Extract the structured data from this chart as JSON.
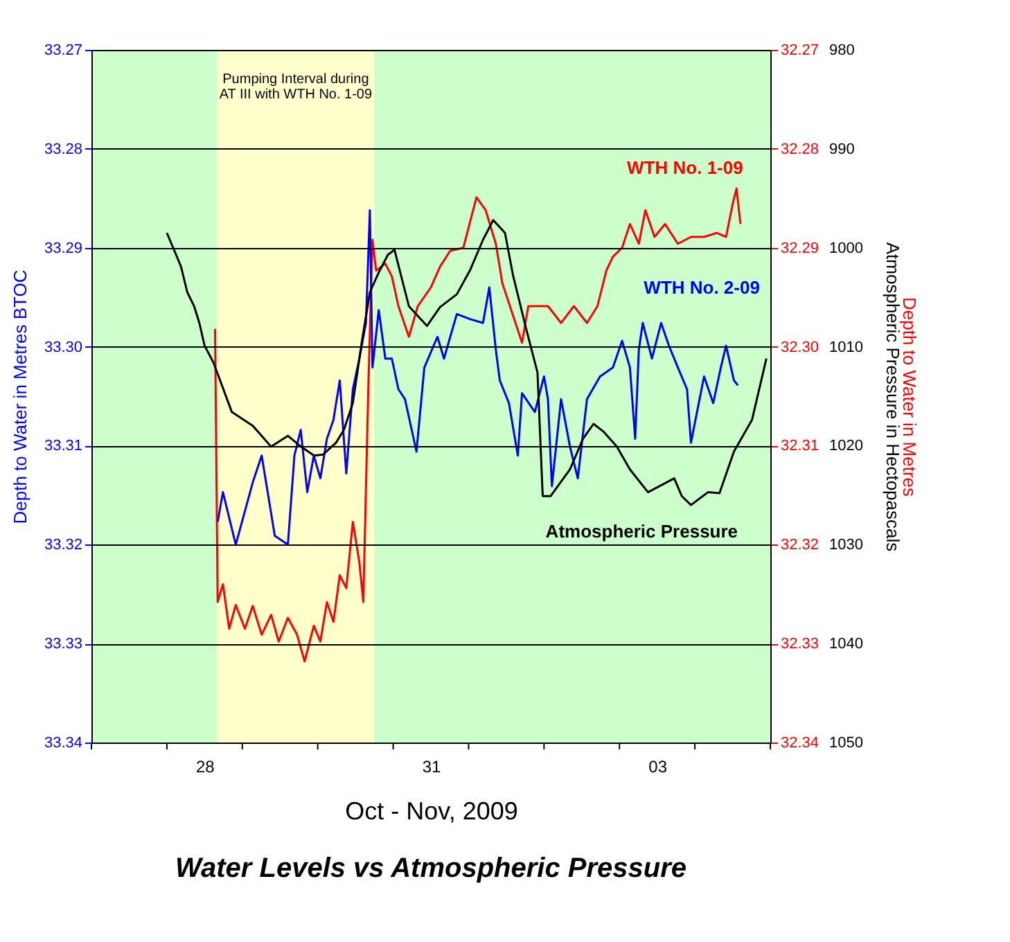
{
  "chart_data": {
    "type": "line",
    "title": "Water Levels vs Atmospheric Pressure",
    "xlabel": "Oct - Nov, 2009",
    "ylabel": "Depth to Water in Metres BTOC",
    "y2label": "Depth to Water in Metres",
    "y3label": "Atmospheric Pressure in Hectopascals",
    "xlim": [
      "2009-10-27",
      "2009-11-05"
    ],
    "xticks": [
      {
        "value": "2009-10-27",
        "label": null
      },
      {
        "value": "2009-10-28",
        "label": null
      },
      {
        "value": "2009-10-28T12:00",
        "label": "28"
      },
      {
        "value": "2009-10-29",
        "label": null
      },
      {
        "value": "2009-10-30",
        "label": null
      },
      {
        "value": "2009-10-31",
        "label": null
      },
      {
        "value": "2009-10-31T12:00",
        "label": "31"
      },
      {
        "value": "2009-11-01",
        "label": null
      },
      {
        "value": "2009-11-02",
        "label": null
      },
      {
        "value": "2009-11-03",
        "label": null
      },
      {
        "value": "2009-11-03T12:00",
        "label": "03"
      },
      {
        "value": "2009-11-04",
        "label": null
      },
      {
        "value": "2009-11-05",
        "label": null
      }
    ],
    "ylim": [
      33.34,
      33.27
    ],
    "yticks": [
      33.27,
      33.28,
      33.29,
      {
        "value": 33.3,
        "label": "33.30"
      },
      33.31,
      33.32,
      33.33,
      33.34
    ],
    "y2lim": [
      32.34,
      32.27
    ],
    "y2ticks": [
      32.27,
      32.28,
      32.29,
      {
        "value": 32.3,
        "label": "32.30"
      },
      32.31,
      32.32,
      32.33,
      32.34
    ],
    "y3lim": [
      1050,
      980
    ],
    "y3ticks": [
      980,
      990,
      1000,
      1010,
      1020,
      1030,
      1040,
      1050
    ],
    "grid": "y",
    "bands": [
      {
        "axis": "x",
        "from": "2009-10-27",
        "to": "2009-11-05",
        "label": null,
        "color": "#ccffcc"
      },
      {
        "axis": "x",
        "from": "2009-10-28T16:00",
        "to": "2009-10-30T18:00",
        "label": "Pumping Interval during AT III with WTH No. 1-09",
        "color": "#ffffcc"
      }
    ],
    "series": [
      {
        "name": "WTH No. 1-09",
        "color": "#ff0000",
        "axis": "y2",
        "x": [
          "2009-10-28T15:20",
          "2009-10-28T16:10",
          "2009-10-28T17:50",
          "2009-10-28T19:50",
          "2009-10-28T21:55",
          "2009-10-29T00:50",
          "2009-10-29T03:20",
          "2009-10-29T06:10",
          "2009-10-29T09:10",
          "2009-10-29T11:35",
          "2009-10-29T14:30",
          "2009-10-29T17:25",
          "2009-10-29T19:50",
          "2009-10-29T22:45",
          "2009-10-30T00:50",
          "2009-10-30T02:55",
          "2009-10-30T05:00",
          "2009-10-30T07:00",
          "2009-10-30T09:05",
          "2009-10-30T11:10",
          "2009-10-30T13:15",
          "2009-10-30T14:30",
          "2009-10-30T16:05",
          "2009-10-30T17:25",
          "2009-10-30T18:35",
          "2009-10-30T21:30",
          "2009-10-30T23:35",
          "2009-10-31T01:40",
          "2009-10-31T05:00",
          "2009-10-31T07:50",
          "2009-10-31T12:00",
          "2009-10-31T14:55",
          "2009-10-31T18:10",
          "2009-10-31T22:20",
          "2009-11-01T02:30",
          "2009-11-01T05:25",
          "2009-11-01T08:40",
          "2009-11-01T10:45",
          "2009-11-01T14:55",
          "2009-11-01T17:00",
          "2009-11-01T19:00",
          "2009-11-02T01:15",
          "2009-11-02T05:25",
          "2009-11-02T09:30",
          "2009-11-02T13:40",
          "2009-11-02T17:00",
          "2009-11-02T19:50",
          "2009-11-02T21:55",
          "2009-11-03T00:50",
          "2009-11-03T03:20",
          "2009-11-03T06:10",
          "2009-11-03T08:15",
          "2009-11-03T11:10",
          "2009-11-03T14:30",
          "2009-11-03T18:35",
          "2009-11-03T22:45",
          "2009-11-04T02:55",
          "2009-11-04T07:00",
          "2009-11-04T09:55",
          "2009-11-04T12:00",
          "2009-11-04T13:15",
          "2009-11-04T14:30"
        ],
        "values": [
          32.2982,
          32.3258,
          32.324,
          32.3285,
          32.3261,
          32.3285,
          32.3262,
          32.3291,
          32.3271,
          32.3298,
          32.3274,
          32.3291,
          32.3318,
          32.3282,
          32.3298,
          32.3258,
          32.3278,
          32.3231,
          32.3244,
          32.3177,
          32.3218,
          32.3258,
          32.3043,
          32.2892,
          32.2923,
          32.2916,
          32.2929,
          32.2959,
          32.299,
          32.2959,
          32.294,
          32.2919,
          32.2903,
          32.29,
          32.2849,
          32.2862,
          32.2896,
          32.2936,
          32.2976,
          32.2996,
          32.2959,
          32.2959,
          32.2976,
          32.2959,
          32.2976,
          32.2959,
          32.2923,
          32.2909,
          32.29,
          32.2876,
          32.2896,
          32.2862,
          32.2889,
          32.2876,
          32.2896,
          32.2889,
          32.2889,
          32.2885,
          32.2889,
          32.2856,
          32.284,
          32.2876
        ]
      },
      {
        "name": "WTH No. 2-09",
        "color": "#0000ff",
        "axis": "y",
        "x": [
          "2009-10-28T16:10",
          "2009-10-28T17:50",
          "2009-10-28T21:55",
          "2009-10-29T03:20",
          "2009-10-29T06:10",
          "2009-10-29T10:20",
          "2009-10-29T14:30",
          "2009-10-29T16:35",
          "2009-10-29T18:35",
          "2009-10-29T20:40",
          "2009-10-29T22:45",
          "2009-10-30T00:50",
          "2009-10-30T02:55",
          "2009-10-30T05:00",
          "2009-10-30T07:00",
          "2009-10-30T09:05",
          "2009-10-30T11:10",
          "2009-10-30T13:15",
          "2009-10-30T15:20",
          "2009-10-30T16:35",
          "2009-10-30T17:25",
          "2009-10-30T19:25",
          "2009-10-30T21:30",
          "2009-10-30T23:35",
          "2009-10-31T01:40",
          "2009-10-31T03:45",
          "2009-10-31T07:25",
          "2009-10-31T09:55",
          "2009-10-31T14:05",
          "2009-10-31T16:10",
          "2009-10-31T20:15",
          "2009-11-01T00:25",
          "2009-11-01T04:35",
          "2009-11-01T06:35",
          "2009-11-01T08:40",
          "2009-11-01T09:55",
          "2009-11-01T12:50",
          "2009-11-01T15:40",
          "2009-11-01T17:00",
          "2009-11-01T21:05",
          "2009-11-02T00:00",
          "2009-11-02T01:15",
          "2009-11-02T02:30",
          "2009-11-02T05:25",
          "2009-11-02T08:15",
          "2009-11-02T10:45",
          "2009-11-02T13:40",
          "2009-11-02T17:50",
          "2009-11-02T21:55",
          "2009-11-03T00:50",
          "2009-11-03T03:20",
          "2009-11-03T05:00",
          "2009-11-03T06:10",
          "2009-11-03T07:25",
          "2009-11-03T10:20",
          "2009-11-03T13:15",
          "2009-11-03T15:45",
          "2009-11-03T18:35",
          "2009-11-03T21:30",
          "2009-11-03T22:45",
          "2009-11-04T02:55",
          "2009-11-04T05:50",
          "2009-11-04T08:15",
          "2009-11-04T09:55",
          "2009-11-04T12:25",
          "2009-11-04T13:40"
        ],
        "values": [
          33.3177,
          33.3147,
          33.32,
          33.3137,
          33.311,
          33.3191,
          33.32,
          33.311,
          33.3084,
          33.3147,
          33.311,
          33.3133,
          33.3093,
          33.3074,
          33.3034,
          33.3128,
          33.3043,
          33.3012,
          33.2976,
          33.2862,
          33.3021,
          33.2963,
          33.3012,
          33.3012,
          33.3043,
          33.3053,
          33.3106,
          33.3021,
          33.299,
          33.3012,
          33.2967,
          33.2972,
          33.2976,
          33.294,
          33.3003,
          33.3034,
          33.3057,
          33.311,
          33.3047,
          33.3066,
          33.303,
          33.3053,
          33.3141,
          33.3053,
          33.3101,
          33.3133,
          33.3053,
          33.303,
          33.3021,
          33.2994,
          33.3021,
          33.3093,
          33.3003,
          33.2976,
          33.3012,
          33.2976,
          33.2999,
          33.3021,
          33.3043,
          33.3097,
          33.303,
          33.3057,
          33.3021,
          33.2999,
          33.3034,
          33.3039
        ]
      },
      {
        "name": "Atmospheric Pressure",
        "color": "#000000",
        "axis": "y3",
        "x": [
          "2009-10-28T00:00",
          "2009-10-28T02:00",
          "2009-10-28T04:30",
          "2009-10-28T06:30",
          "2009-10-28T08:40",
          "2009-10-28T10:20",
          "2009-10-28T12:00",
          "2009-10-28T14:50",
          "2009-10-28T20:40",
          "2009-10-29T03:20",
          "2009-10-29T06:10",
          "2009-10-29T09:10",
          "2009-10-29T14:30",
          "2009-10-29T18:40",
          "2009-10-29T22:50",
          "2009-10-30T01:40",
          "2009-10-30T05:50",
          "2009-10-30T08:20",
          "2009-10-30T11:10",
          "2009-10-30T14:05",
          "2009-10-30T16:35",
          "2009-10-30T19:25",
          "2009-10-30T22:20",
          "2009-10-31T00:25",
          "2009-10-31T05:00",
          "2009-10-31T10:45",
          "2009-10-31T14:55",
          "2009-10-31T20:15",
          "2009-11-01T00:25",
          "2009-11-01T04:35",
          "2009-11-01T07:50",
          "2009-11-01T11:35",
          "2009-11-01T14:05",
          "2009-11-01T18:10",
          "2009-11-01T21:55",
          "2009-11-01T23:35",
          "2009-11-02T02:05",
          "2009-11-02T08:15",
          "2009-11-02T12:25",
          "2009-11-02T15:45",
          "2009-11-02T19:00",
          "2009-11-02T23:10",
          "2009-11-03T03:20",
          "2009-11-03T09:05",
          "2009-11-03T17:25",
          "2009-11-03T19:50",
          "2009-11-03T22:45",
          "2009-11-04T04:10",
          "2009-11-04T07:50",
          "2009-11-04T12:25",
          "2009-11-04T18:10",
          "2009-11-04T22:45"
        ],
        "values": [
          998.5,
          1000.0,
          1001.9,
          1004.5,
          1005.9,
          1007.6,
          1009.9,
          1011.6,
          1016.6,
          1018.0,
          1019.0,
          1020.1,
          1019.0,
          1020.1,
          1021.0,
          1020.9,
          1019.7,
          1018.4,
          1015.7,
          1009.4,
          1004.5,
          1002.5,
          1000.7,
          1000.2,
          1005.9,
          1007.9,
          1006.0,
          1004.7,
          1002.3,
          999.2,
          997.2,
          998.5,
          1002.7,
          1008.0,
          1012.6,
          1025.1,
          1025.1,
          1022.4,
          1019.3,
          1017.8,
          1018.6,
          1020.1,
          1022.4,
          1024.7,
          1023.3,
          1025.1,
          1026.0,
          1024.7,
          1024.8,
          1020.6,
          1017.4,
          1011.2
        ]
      }
    ]
  }
}
